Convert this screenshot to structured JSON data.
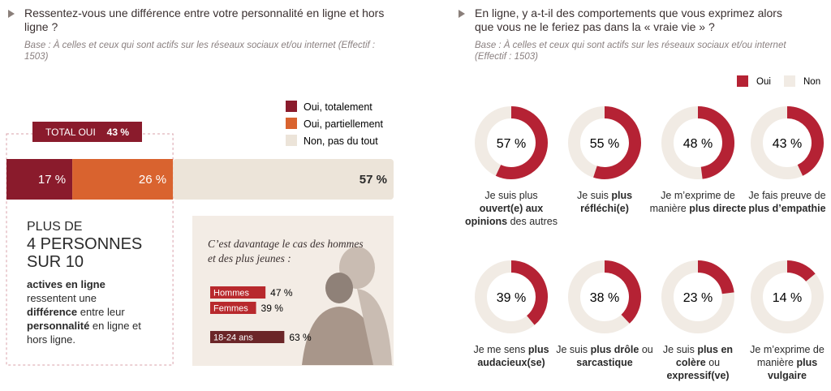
{
  "left": {
    "title": "Ressentez-vous une différence entre votre personnalité en ligne et hors ligne ?",
    "base": "Base : À celles et ceux qui sont actifs sur les réseaux sociaux et/ou internet (Effectif : 1503)"
  },
  "callout": {
    "heading": [
      "PLUS DE",
      "4 PERSONNES",
      "SUR 10"
    ],
    "text": [
      {
        "text": "actives en ligne",
        "bold": true
      },
      {
        "text": " ressentent une ",
        "bold": false
      },
      {
        "text": "différence",
        "bold": true
      },
      {
        "text": " entre leur ",
        "bold": false
      },
      {
        "text": "personnalité",
        "bold": true
      },
      {
        "text": " en ligne et hors ligne.",
        "bold": false
      }
    ]
  },
  "right": {
    "title": "En ligne, y a-t-il des comportements que vous exprimez alors que vous ne le feriez pas dans la « vraie vie » ?",
    "base": "Base : À celles et ceux qui sont actifs sur les réseaux sociaux et/ou internet (Effectif : 1503)"
  },
  "chart_data": [
    {
      "type": "stacked-bar",
      "series": [
        {
          "name": "Oui, totalement",
          "color": "#8a1b2c",
          "label_color": "#ffffff",
          "values": [
            17
          ],
          "value_labels": [
            "17 %"
          ]
        },
        {
          "name": "Oui, partiellement",
          "color": "#d9632f",
          "label_color": "#ffffff",
          "values": [
            26
          ],
          "value_labels": [
            "26 %"
          ]
        },
        {
          "name": "Non, pas du tout",
          "color": "#ece4d9",
          "label_color": "#2a2a2a",
          "values": [
            57
          ],
          "value_labels": [
            "57 %"
          ]
        }
      ],
      "total": {
        "label": "TOTAL OUI",
        "value": 43,
        "value_label": "43 %",
        "color": "#8a1b2c"
      }
    },
    {
      "type": "bar",
      "title": "C’est davantage le cas des hommes et des plus jeunes :",
      "categories": [
        "Hommes",
        "Femmes",
        "18-24 ans"
      ],
      "values": [
        47,
        39,
        63
      ],
      "value_labels": [
        "47 %",
        "39 %",
        "63 %"
      ],
      "colors": [
        "#b8292d",
        "#b8292d",
        "#6b2628"
      ]
    },
    {
      "type": "donut",
      "series": [
        {
          "name": "Oui",
          "color": "#b52234"
        },
        {
          "name": "Non",
          "color": "#f1ebe4"
        }
      ],
      "values": [
        57,
        55,
        48,
        43,
        39,
        38,
        23,
        14
      ],
      "value_labels": [
        "57 %",
        "55 %",
        "48 %",
        "43 %",
        "39 %",
        "38 %",
        "23 %",
        "14 %"
      ],
      "categories": [
        [
          {
            "text": "Je suis plus ",
            "bold": false
          },
          {
            "text": "ouvert(e) aux opinions",
            "bold": true
          },
          {
            "text": " des autres",
            "bold": false
          }
        ],
        [
          {
            "text": "Je suis ",
            "bold": false
          },
          {
            "text": "plus réfléchi(e)",
            "bold": true
          }
        ],
        [
          {
            "text": "Je m’exprime de manière ",
            "bold": false
          },
          {
            "text": "plus directe",
            "bold": true
          }
        ],
        [
          {
            "text": "Je fais preuve de ",
            "bold": false
          },
          {
            "text": "plus d’empathie",
            "bold": true
          }
        ],
        [
          {
            "text": "Je me sens ",
            "bold": false
          },
          {
            "text": "plus audacieux(se)",
            "bold": true
          }
        ],
        [
          {
            "text": "Je suis ",
            "bold": false
          },
          {
            "text": "plus drôle",
            "bold": true
          },
          {
            "text": " ou ",
            "bold": false
          },
          {
            "text": "sarcastique",
            "bold": true
          }
        ],
        [
          {
            "text": "Je suis ",
            "bold": false
          },
          {
            "text": "plus en colère",
            "bold": true
          },
          {
            "text": " ou ",
            "bold": false
          },
          {
            "text": "expressif(ve)",
            "bold": true
          }
        ],
        [
          {
            "text": "Je m’exprime de manière ",
            "bold": false
          },
          {
            "text": "plus vulgaire",
            "bold": true
          }
        ]
      ]
    }
  ]
}
